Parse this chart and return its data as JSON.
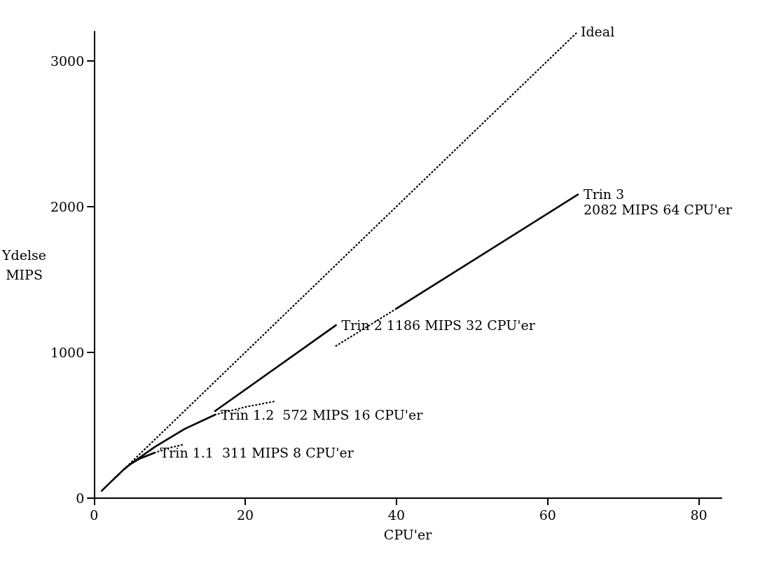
{
  "chart_data": {
    "type": "line",
    "xlabel": "CPU'er",
    "ylabel": "Ydelse\nMIPS",
    "xlim": [
      0,
      83
    ],
    "xticks": [
      0,
      20,
      40,
      60,
      80
    ],
    "ylim": [
      0,
      3200
    ],
    "yticks": [
      0,
      1000,
      2000,
      3000
    ],
    "grid": false,
    "marker": "none",
    "series": [
      {
        "color": "#000000",
        "line_style": "solid",
        "x": [
          1,
          2,
          3,
          4,
          5,
          6,
          8
        ],
        "values": [
          50,
          100,
          150,
          200,
          240,
          270,
          311
        ]
      },
      {
        "color": "#000000",
        "line_style": "dotted",
        "x": [
          8,
          10,
          12
        ],
        "values": [
          311,
          345,
          370
        ]
      },
      {
        "color": "#000000",
        "line_style": "solid",
        "x": [
          5,
          8,
          12,
          16
        ],
        "values": [
          240,
          350,
          475,
          572
        ]
      },
      {
        "color": "#000000",
        "line_style": "dotted",
        "x": [
          16,
          20,
          24
        ],
        "values": [
          572,
          625,
          665
        ]
      },
      {
        "color": "#000000",
        "line_style": "solid",
        "x": [
          16,
          32
        ],
        "values": [
          597,
          1186
        ]
      },
      {
        "color": "#000000",
        "line_style": "dotted",
        "x": [
          32,
          40
        ],
        "values": [
          1044,
          1300
        ]
      },
      {
        "color": "#000000",
        "line_style": "solid",
        "x": [
          40,
          64
        ],
        "values": [
          1300,
          2082
        ]
      },
      {
        "name": "Ideal",
        "color": "#000000",
        "line_style": "dotted",
        "x": [
          4,
          64
        ],
        "values": [
          200,
          3200
        ]
      }
    ],
    "annotations": [
      {
        "text": "Trin 1.1  311 MIPS 8 CPU'er",
        "x": 8,
        "y": 311
      },
      {
        "text": "Trin 1.2  572 MIPS 16 CPU'er",
        "x": 16,
        "y": 572
      },
      {
        "text": "Trin 2 1186 MIPS 32 CPU'er",
        "x": 32,
        "y": 1186
      },
      {
        "text": "Trin 3\n2082 MIPS 64 CPU'er",
        "x": 64,
        "y": 2082
      }
    ]
  }
}
